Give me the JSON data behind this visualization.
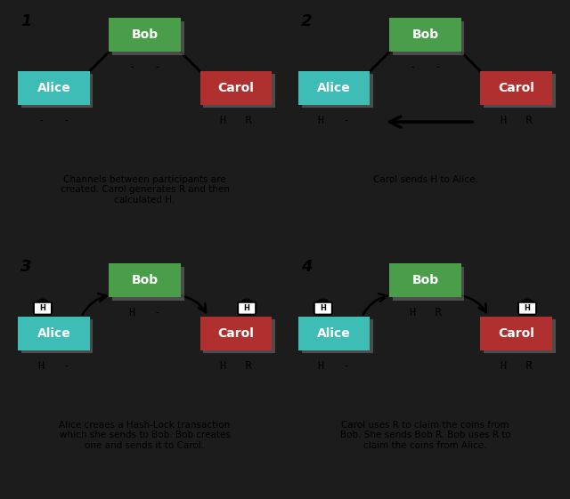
{
  "outer_bg": "#1c1c1c",
  "panel_bg": "#ffffff",
  "alice_color": "#3dbdb5",
  "bob_color": "#4a9e4a",
  "carol_color": "#b03030",
  "panels": [
    {
      "num": "1",
      "desc": "Channels between participants are\ncreated. Carol generates R and then\ncalculated H.",
      "alice_label": "-   -",
      "bob_label": "-   -",
      "carol_label": "H   R",
      "connections": [
        "alice-bob",
        "carol-bob"
      ],
      "arrows": []
    },
    {
      "num": "2",
      "desc": "Carol sends H to Alice.",
      "alice_label": "H   -",
      "bob_label": "-   -",
      "carol_label": "H   R",
      "connections": [
        "alice-bob",
        "carol-bob"
      ],
      "arrows": [
        "carol-to-alice-h"
      ]
    },
    {
      "num": "3",
      "desc": "Alice creaes a Hash-Lock transaction\nwhich she sends to Bob. Bob creates\none and sends it to Carol.",
      "alice_label": "H   -",
      "bob_label": "H   -",
      "carol_label": "H   R",
      "connections": [],
      "arrows": [
        "alice-to-bob-lock",
        "bob-to-carol-lock"
      ]
    },
    {
      "num": "4",
      "desc": "Carol uses R to claim the coins from\nBob. She sends Bob R. Bob uses R to\nclaim the coins from Alice.",
      "alice_label": "H   -",
      "bob_label": "H   R",
      "carol_label": "H   R",
      "connections": [],
      "arrows": [
        "alice-to-bob-lock",
        "bob-to-carol-lock"
      ]
    }
  ]
}
